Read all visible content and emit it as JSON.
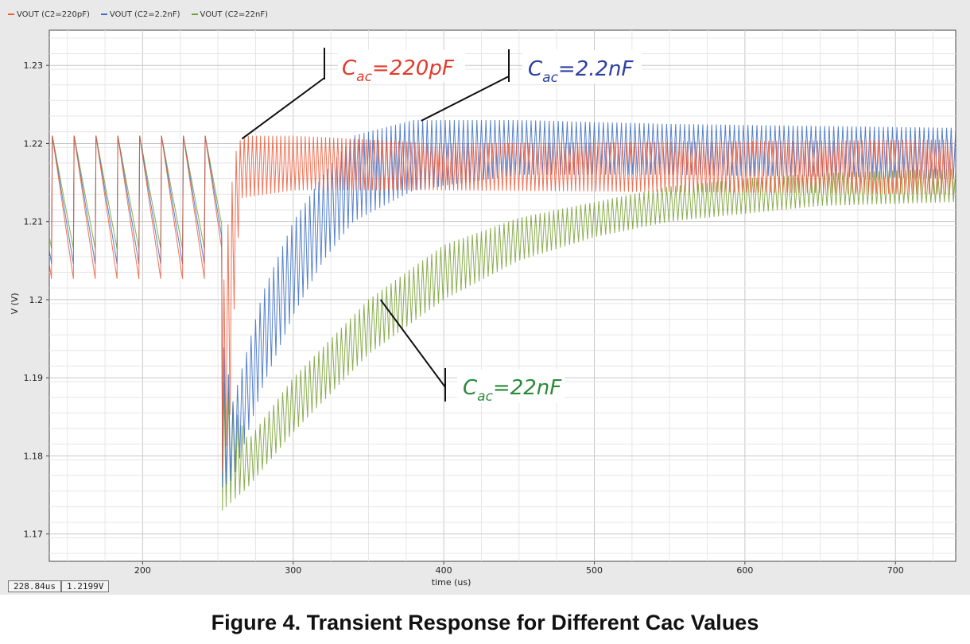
{
  "chart_data": {
    "type": "line",
    "title": "",
    "xlabel": "time (us)",
    "ylabel": "V (V)",
    "xlim": [
      138,
      740
    ],
    "ylim": [
      1.1665,
      1.2345
    ],
    "x_ticks": [
      200,
      300,
      400,
      500,
      600,
      700
    ],
    "y_ticks": [
      1.17,
      1.18,
      1.19,
      1.2,
      1.21,
      1.22,
      1.23
    ],
    "x_tick_labels": [
      "200",
      "300",
      "400",
      "500",
      "600",
      "700"
    ],
    "y_tick_labels": [
      "1.17",
      "1.18",
      "1.19",
      "1.2",
      "1.21",
      "1.22",
      "1.23"
    ],
    "grid": true,
    "legend_position": "top-left",
    "step_time_us": 253,
    "series": [
      {
        "name": "VOUT (C2=220pF)",
        "color": "#ee5a3a",
        "before_step_range": [
          1.202,
          1.221
        ],
        "dip_min": 1.178,
        "settled_range": [
          1.2135,
          1.2208
        ],
        "envelope": [
          [
            253,
            1.178,
            1.2
          ],
          [
            258,
            1.185,
            1.213
          ],
          [
            262,
            1.205,
            1.219
          ],
          [
            266,
            1.213,
            1.221
          ],
          [
            300,
            1.214,
            1.221
          ],
          [
            400,
            1.214,
            1.22
          ],
          [
            740,
            1.2135,
            1.2205
          ]
        ]
      },
      {
        "name": "VOUT (C2=2.2nF)",
        "color": "#3a6cc4",
        "before_step_range": [
          1.204,
          1.221
        ],
        "dip_min": 1.176,
        "settled_range": [
          1.2155,
          1.2223
        ],
        "envelope": [
          [
            253,
            1.176,
            1.195
          ],
          [
            260,
            1.177,
            1.187
          ],
          [
            280,
            1.189,
            1.201
          ],
          [
            300,
            1.198,
            1.21
          ],
          [
            320,
            1.205,
            1.216
          ],
          [
            340,
            1.21,
            1.221
          ],
          [
            380,
            1.214,
            1.223
          ],
          [
            450,
            1.216,
            1.223
          ],
          [
            550,
            1.216,
            1.2225
          ],
          [
            740,
            1.2155,
            1.222
          ]
        ]
      },
      {
        "name": "VOUT (C2=22nF)",
        "color": "#78a032",
        "before_step_range": [
          1.206,
          1.221
        ],
        "dip_min": 1.173,
        "settled_range": [
          1.212,
          1.2165
        ],
        "envelope": [
          [
            253,
            1.173,
            1.19
          ],
          [
            270,
            1.176,
            1.182
          ],
          [
            300,
            1.183,
            1.19
          ],
          [
            350,
            1.193,
            1.2
          ],
          [
            400,
            1.2,
            1.207
          ],
          [
            450,
            1.205,
            1.2105
          ],
          [
            500,
            1.208,
            1.2125
          ],
          [
            550,
            1.21,
            1.2145
          ],
          [
            600,
            1.211,
            1.2155
          ],
          [
            650,
            1.212,
            1.2162
          ],
          [
            740,
            1.2125,
            1.2168
          ]
        ]
      }
    ],
    "annotations": [
      {
        "base": "C",
        "sub": "ac",
        "value": "=220pF",
        "color": "#e23a2d",
        "anchor": [
          265,
          1.2206
        ]
      },
      {
        "base": "C",
        "sub": "ac",
        "value": "=2.2nF",
        "color": "#2d3fa2",
        "anchor": [
          385,
          1.2229
        ]
      },
      {
        "base": "C",
        "sub": "ac",
        "value": "=22nF",
        "color": "#2b8a3a",
        "anchor": [
          358,
          1.2
        ]
      }
    ],
    "cursor_readout": {
      "time": "228.84us",
      "value": "1.2199V"
    }
  },
  "caption": "Figure 4. Transient Response for Different Cac Values"
}
